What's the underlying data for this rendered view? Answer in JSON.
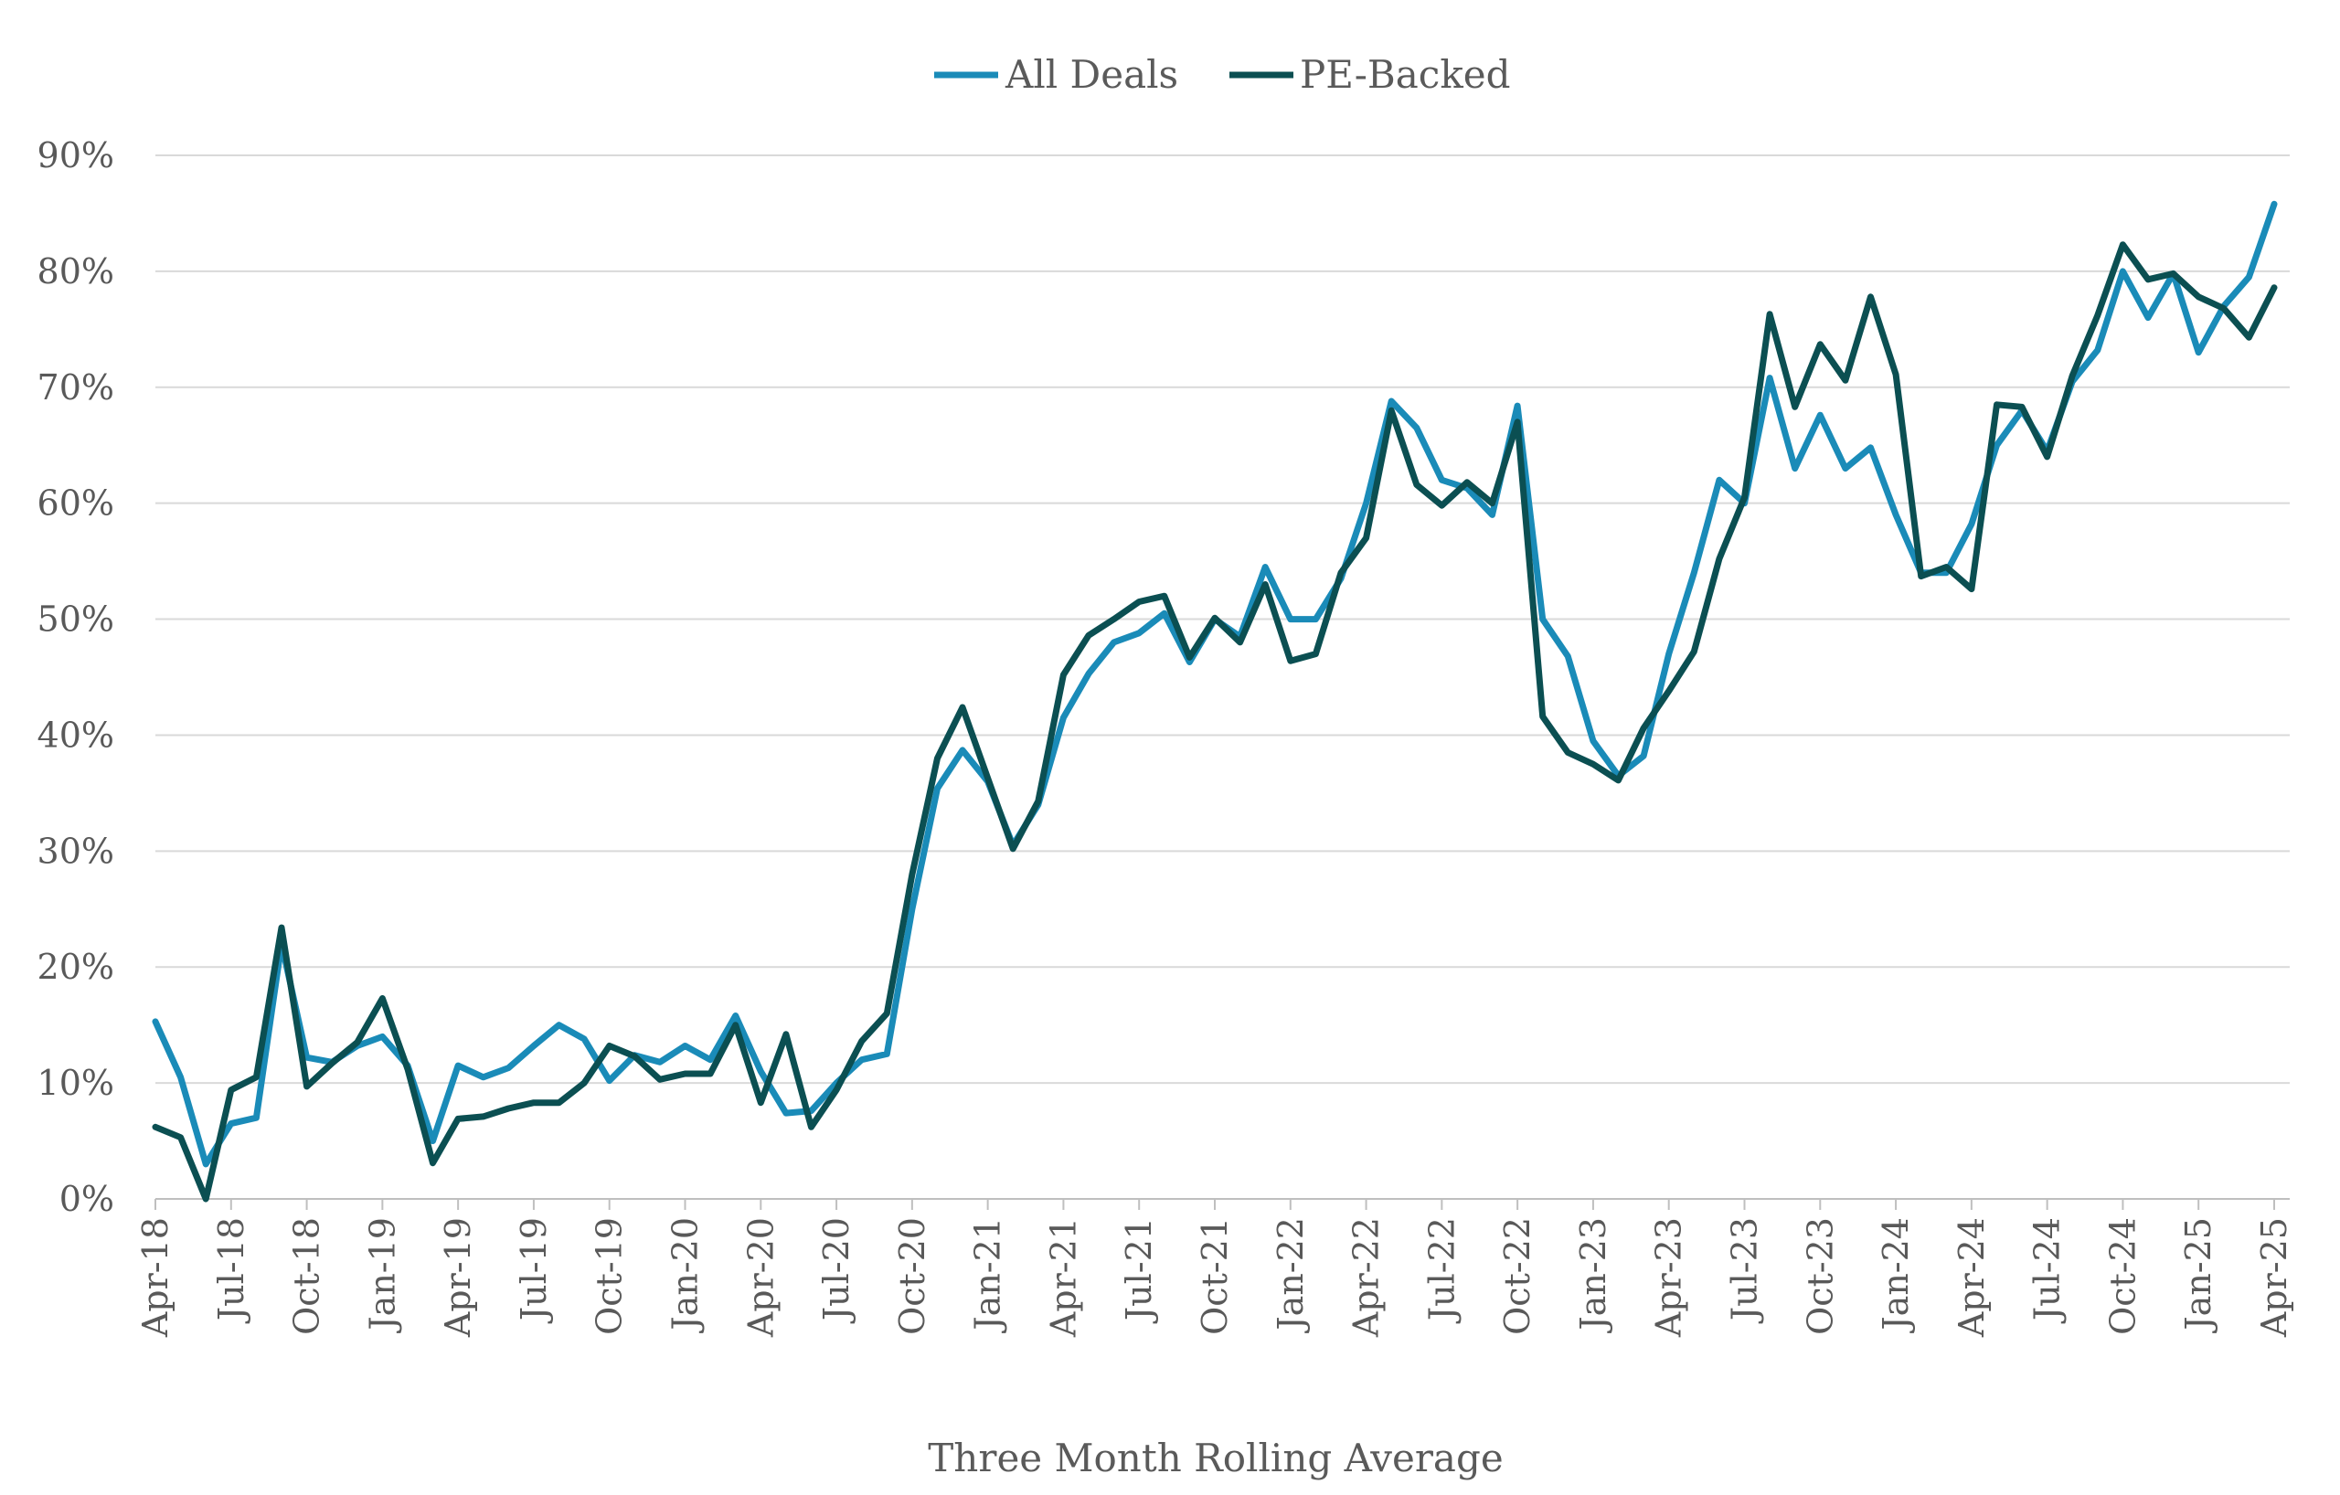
{
  "chart_data": {
    "type": "line",
    "title": "",
    "xlabel": "Three Month Rolling Average",
    "ylabel": "",
    "ylim": [
      0,
      90
    ],
    "yticks": [
      "0%",
      "10%",
      "20%",
      "30%",
      "40%",
      "50%",
      "60%",
      "70%",
      "80%",
      "90%"
    ],
    "grid": true,
    "legend_position": "top-center",
    "x_tick_labels": [
      "Apr-18",
      "Jul-18",
      "Oct-18",
      "Jan-19",
      "Apr-19",
      "Jul-19",
      "Oct-19",
      "Jan-20",
      "Apr-20",
      "Jul-20",
      "Oct-20",
      "Jan-21",
      "Apr-21",
      "Jul-21",
      "Oct-21",
      "Jan-22",
      "Apr-22",
      "Jul-22",
      "Oct-22",
      "Jan-23",
      "Apr-23",
      "Jul-23",
      "Oct-23",
      "Jan-24",
      "Apr-24",
      "Jul-24",
      "Oct-24",
      "Jan-25",
      "Apr-25"
    ],
    "x": [
      "Apr-18",
      "May-18",
      "Jun-18",
      "Jul-18",
      "Aug-18",
      "Sep-18",
      "Oct-18",
      "Nov-18",
      "Dec-18",
      "Jan-19",
      "Feb-19",
      "Mar-19",
      "Apr-19",
      "May-19",
      "Jun-19",
      "Jul-19",
      "Aug-19",
      "Sep-19",
      "Oct-19",
      "Nov-19",
      "Dec-19",
      "Jan-20",
      "Feb-20",
      "Mar-20",
      "Apr-20",
      "May-20",
      "Jun-20",
      "Jul-20",
      "Aug-20",
      "Sep-20",
      "Oct-20",
      "Nov-20",
      "Dec-20",
      "Jan-21",
      "Feb-21",
      "Mar-21",
      "Apr-21",
      "May-21",
      "Jun-21",
      "Jul-21",
      "Aug-21",
      "Sep-21",
      "Oct-21",
      "Nov-21",
      "Dec-21",
      "Jan-22",
      "Feb-22",
      "Mar-22",
      "Apr-22",
      "May-22",
      "Jun-22",
      "Jul-22",
      "Aug-22",
      "Sep-22",
      "Oct-22",
      "Nov-22",
      "Dec-22",
      "Jan-23",
      "Feb-23",
      "Mar-23",
      "Apr-23",
      "May-23",
      "Jun-23",
      "Jul-23",
      "Aug-23",
      "Sep-23",
      "Oct-23",
      "Nov-23",
      "Dec-23",
      "Jan-24",
      "Feb-24",
      "Mar-24",
      "Apr-24",
      "May-24",
      "Jun-24",
      "Jul-24",
      "Aug-24",
      "Sep-24",
      "Oct-24",
      "Nov-24",
      "Dec-24",
      "Jan-25",
      "Feb-25",
      "Mar-25",
      "Apr-25"
    ],
    "series": [
      {
        "name": "All Deals",
        "color": "#1a8bb8",
        "values": [
          15.3,
          10.5,
          3.0,
          6.5,
          7.0,
          22.0,
          12.2,
          11.8,
          13.2,
          14.0,
          11.5,
          5.0,
          11.5,
          10.5,
          11.3,
          13.2,
          15.0,
          13.8,
          10.2,
          12.4,
          11.8,
          13.2,
          12.0,
          15.8,
          11.0,
          7.4,
          7.6,
          10.0,
          12.0,
          12.5,
          25.0,
          35.4,
          38.7,
          36.0,
          30.5,
          34.0,
          41.5,
          45.3,
          48.0,
          48.8,
          50.5,
          46.3,
          50.0,
          48.5,
          54.5,
          50.0,
          50.0,
          53.5,
          60.0,
          68.8,
          66.5,
          62.0,
          61.3,
          59.0,
          68.4,
          50.0,
          46.8,
          39.5,
          36.5,
          38.2,
          47.0,
          54.0,
          62.0,
          60.0,
          70.8,
          63.0,
          67.6,
          63.0,
          64.8,
          59.0,
          54.0,
          54.0,
          58.2,
          65.0,
          68.0,
          64.5,
          70.5,
          73.2,
          80.0,
          76.0,
          79.8,
          73.0,
          77.0,
          79.5,
          85.8
        ]
      },
      {
        "name": "PE-Backed",
        "color": "#0b4f52",
        "values": [
          6.2,
          5.3,
          0.0,
          9.4,
          10.5,
          23.4,
          9.7,
          11.7,
          13.5,
          17.3,
          11.2,
          3.1,
          6.9,
          7.1,
          7.8,
          8.3,
          8.3,
          10.0,
          13.2,
          12.3,
          10.3,
          10.8,
          10.8,
          15.0,
          8.3,
          14.2,
          6.2,
          9.4,
          13.6,
          16.0,
          28.0,
          38.0,
          42.4,
          36.3,
          30.2,
          34.3,
          45.2,
          48.6,
          50.0,
          51.5,
          52.0,
          46.7,
          50.1,
          48.0,
          53.0,
          46.4,
          47.0,
          54.0,
          57.0,
          68.0,
          61.6,
          59.8,
          61.8,
          60.0,
          67.0,
          41.6,
          38.5,
          37.5,
          36.1,
          40.6,
          43.8,
          47.2,
          55.2,
          60.5,
          76.3,
          68.3,
          73.7,
          70.6,
          77.8,
          71.1,
          53.7,
          54.5,
          52.6,
          68.5,
          68.3,
          64.0,
          71.0,
          76.2,
          82.3,
          79.3,
          79.8,
          77.8,
          76.8,
          74.3,
          78.6
        ]
      }
    ]
  }
}
